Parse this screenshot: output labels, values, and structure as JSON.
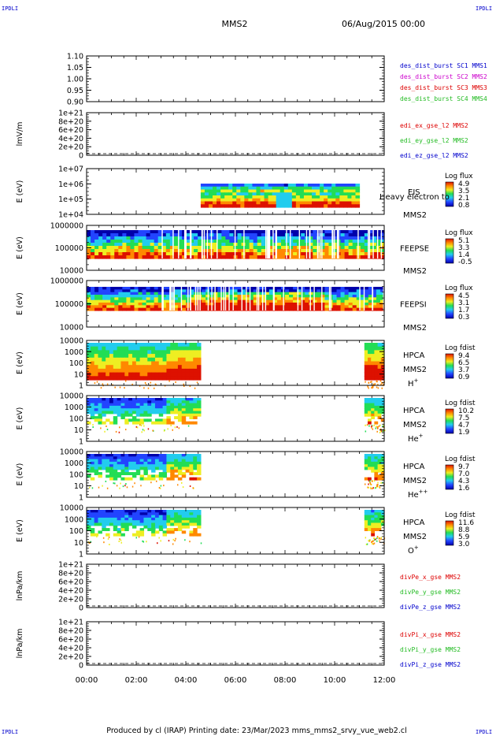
{
  "corner_label": "IPDLI",
  "header": {
    "title": "MMS2",
    "datetime": "06/Aug/2015 00:00"
  },
  "footer": "Produced by cl (IRAP)   Printing date: 23/Mar/2023   mms_mms2_srvy_vue_web2.cl",
  "x_ticks": [
    "00:00",
    "02:00",
    "04:00",
    "06:00",
    "08:00",
    "10:00",
    "12:00"
  ],
  "x_range_hours": [
    0,
    12
  ],
  "colors": {
    "blue": "#0000cc",
    "magenta": "#cc00cc",
    "red": "#dd0000",
    "green": "#22bb22",
    "spec_deep": "#0000aa",
    "spec_blue": "#2244ff",
    "spec_cyan": "#22ccee",
    "spec_green": "#22dd55",
    "spec_yellow": "#eeee22",
    "spec_orange": "#ff8800",
    "spec_red": "#dd1100"
  },
  "chart_data": [
    {
      "type": "line",
      "ylabel": "",
      "ylim": [
        0.9,
        1.1
      ],
      "y_ticks": [
        "1.10",
        "1.05",
        "1.00",
        "0.95",
        "0.90"
      ],
      "legend": [
        {
          "text": "des_dist_burst SC1 MMS1",
          "color": "#0000cc"
        },
        {
          "text": "des_dist_burst SC2 MMS2",
          "color": "#cc00cc"
        },
        {
          "text": "des_dist_burst SC3 MMS3",
          "color": "#dd0000"
        },
        {
          "text": "des_dist_burst SC4 MMS4",
          "color": "#22bb22"
        }
      ],
      "series": []
    },
    {
      "type": "line",
      "ylabel": "lmV/m",
      "ylim": [
        0,
        1e+21
      ],
      "y_ticks": [
        "1e+21",
        "8e+20",
        "6e+20",
        "4e+20",
        "2e+20",
        "0"
      ],
      "legend": [
        {
          "text": "edi_ex_gse_l2 MMS2",
          "color": "#dd0000"
        },
        {
          "text": "edi_ey_gse_l2 MMS2",
          "color": "#22bb22"
        },
        {
          "text": "edi_ez_gse_l2 MMS2",
          "color": "#0000cc"
        }
      ],
      "series": []
    },
    {
      "type": "heatmap",
      "ylabel": "E (eV)",
      "log_scale": true,
      "y_ticks": [
        "1e+07",
        "1e+06",
        "1e+05",
        "1e+04"
      ],
      "instrument": "EIS",
      "spacecraft": "MMS2",
      "extra_label": "Heavy electron to",
      "colorbar": {
        "title": "Log flux",
        "ticks": [
          "4.9",
          "3.5",
          "2.1",
          "0.8"
        ]
      },
      "coverage_hours": [
        4.6,
        11.0
      ]
    },
    {
      "type": "heatmap",
      "ylabel": "E (eV)",
      "log_scale": true,
      "y_ticks": [
        "1000000",
        "100000",
        "10000"
      ],
      "instrument": "FEEPSE",
      "spacecraft": "MMS2",
      "colorbar": {
        "title": "Log flux",
        "ticks": [
          "5.1",
          "3.3",
          "1.4",
          "-0.5"
        ]
      },
      "coverage_hours": [
        0,
        12
      ]
    },
    {
      "type": "heatmap",
      "ylabel": "E (eV)",
      "log_scale": true,
      "y_ticks": [
        "1000000",
        "100000",
        "10000"
      ],
      "instrument": "FEEPSI",
      "spacecraft": "MMS2",
      "colorbar": {
        "title": "Log flux",
        "ticks": [
          "4.5",
          "3.1",
          "1.7",
          "0.3"
        ]
      },
      "coverage_hours": [
        0,
        12
      ]
    },
    {
      "type": "heatmap",
      "ylabel": "E (eV)",
      "log_scale": true,
      "y_ticks": [
        "10000",
        "1000",
        "100",
        "10",
        "1"
      ],
      "instrument": "HPCA",
      "spacecraft": "MMS2",
      "species": "H",
      "species_sup": "+",
      "colorbar": {
        "title": "Log fdist",
        "ticks": [
          "9.4",
          "6.5",
          "3.7",
          "0.9"
        ]
      },
      "coverage_hours": [
        [
          0,
          4.6
        ],
        [
          11.2,
          12
        ]
      ]
    },
    {
      "type": "heatmap",
      "ylabel": "E (eV)",
      "log_scale": true,
      "y_ticks": [
        "10000",
        "1000",
        "100",
        "10",
        "1"
      ],
      "instrument": "HPCA",
      "spacecraft": "MMS2",
      "species": "He",
      "species_sup": "+",
      "colorbar": {
        "title": "Log fdist",
        "ticks": [
          "10.2",
          "7.5",
          "4.7",
          "1.9"
        ]
      },
      "coverage_hours": [
        [
          0,
          4.6
        ],
        [
          11.2,
          12
        ]
      ]
    },
    {
      "type": "heatmap",
      "ylabel": "E (eV)",
      "log_scale": true,
      "y_ticks": [
        "10000",
        "1000",
        "100",
        "10",
        "1"
      ],
      "instrument": "HPCA",
      "spacecraft": "MMS2",
      "species": "He",
      "species_sup": "++",
      "colorbar": {
        "title": "Log fdist",
        "ticks": [
          "9.7",
          "7.0",
          "4.3",
          "1.6"
        ]
      },
      "coverage_hours": [
        [
          0,
          4.6
        ],
        [
          11.2,
          12
        ]
      ]
    },
    {
      "type": "heatmap",
      "ylabel": "E (eV)",
      "log_scale": true,
      "y_ticks": [
        "10000",
        "1000",
        "100",
        "10",
        "1"
      ],
      "instrument": "HPCA",
      "spacecraft": "MMS2",
      "species": "O",
      "species_sup": "+",
      "colorbar": {
        "title": "Log fdist",
        "ticks": [
          "11.6",
          "8.8",
          "5.9",
          "3.0"
        ]
      },
      "coverage_hours": [
        [
          0,
          4.6
        ],
        [
          11.2,
          12
        ]
      ]
    },
    {
      "type": "line",
      "ylabel": "lnPa/km",
      "ylim": [
        0,
        1e+21
      ],
      "y_ticks": [
        "1e+21",
        "8e+20",
        "6e+20",
        "4e+20",
        "2e+20",
        "0"
      ],
      "legend": [
        {
          "text": "divPe_x_gse MMS2",
          "color": "#dd0000"
        },
        {
          "text": "divPe_y_gse MMS2",
          "color": "#22bb22"
        },
        {
          "text": "divPe_z_gse MMS2",
          "color": "#0000cc"
        }
      ],
      "series": []
    },
    {
      "type": "line",
      "ylabel": "lnPa/km",
      "ylim": [
        0,
        1e+21
      ],
      "y_ticks": [
        "1e+21",
        "8e+20",
        "6e+20",
        "4e+20",
        "2e+20",
        "0"
      ],
      "legend": [
        {
          "text": "divPi_x_gse MMS2",
          "color": "#dd0000"
        },
        {
          "text": "divPi_y_gse MMS2",
          "color": "#22bb22"
        },
        {
          "text": "divPi_z_gse MMS2",
          "color": "#0000cc"
        }
      ],
      "series": []
    }
  ]
}
